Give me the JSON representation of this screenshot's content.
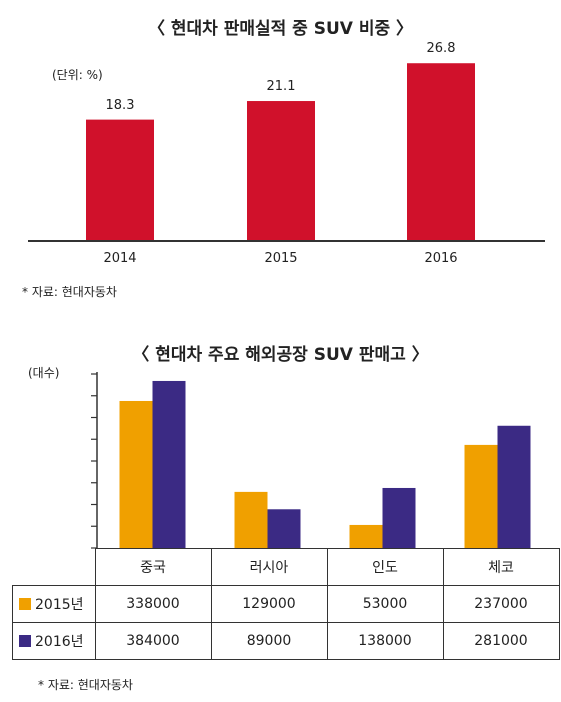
{
  "colors": {
    "top_bar": "#d0112b",
    "s2015": "#f0a000",
    "s2016": "#3b2a84"
  },
  "chart_data": [
    {
      "type": "bar",
      "title": "〈 현대차 판매실적 중 SUV 비중 〉",
      "unit": "(단위: %)",
      "categories": [
        "2014",
        "2015",
        "2016"
      ],
      "values": [
        18.3,
        21.1,
        26.8
      ],
      "value_labels": [
        "18.3",
        "21.1",
        "26.8"
      ],
      "ylim": [
        0,
        30
      ],
      "source": "* 자료: 현대자동차"
    },
    {
      "type": "bar",
      "title": "〈 현대차 주요 해외공장 SUV 판매고 〉",
      "unit": "(대수)",
      "categories": [
        "중국",
        "러시아",
        "인도",
        "체코"
      ],
      "series": [
        {
          "name": "2015년",
          "values": [
            338000,
            129000,
            53000,
            237000
          ]
        },
        {
          "name": "2016년",
          "values": [
            384000,
            89000,
            138000,
            281000
          ]
        }
      ],
      "value_labels": [
        [
          "338000",
          "129000",
          "53000",
          "237000"
        ],
        [
          "384000",
          "89000",
          "138000",
          "281000"
        ]
      ],
      "ylim": [
        0,
        400000
      ],
      "source": "* 자료: 현대자동차"
    }
  ]
}
